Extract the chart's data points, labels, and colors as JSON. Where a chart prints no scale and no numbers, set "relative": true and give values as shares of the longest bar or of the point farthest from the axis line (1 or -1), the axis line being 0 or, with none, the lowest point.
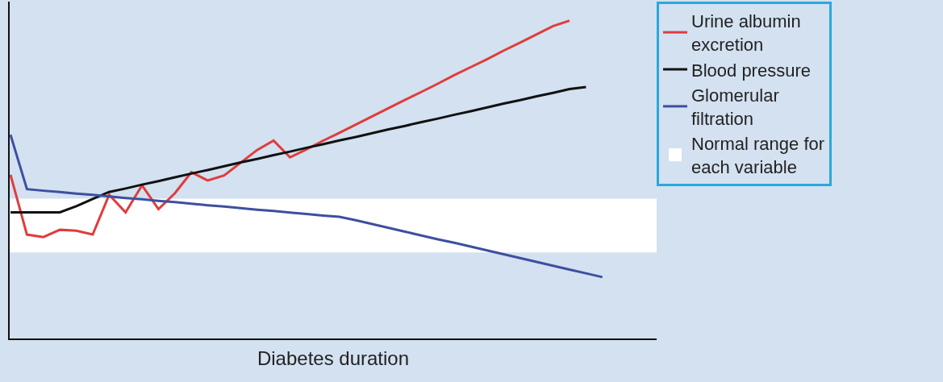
{
  "chart_data": {
    "type": "line",
    "relative": true,
    "xlabel": "Diabetes duration",
    "tick_labels": false,
    "grid": false,
    "legend": "right",
    "marker": "none",
    "line_style": "solid",
    "categories": [
      null,
      null,
      null,
      null,
      null,
      null,
      null,
      null,
      null,
      null,
      null,
      null,
      null,
      null,
      null,
      null,
      null,
      null,
      null,
      null,
      null,
      null,
      null,
      null,
      null,
      null,
      null,
      null,
      null,
      null,
      null,
      null,
      null,
      null,
      null,
      null,
      null,
      null,
      null,
      null
    ],
    "series": [
      {
        "name": "Urine albumin excretion",
        "color": "#e03c3c",
        "values": [
          0.515,
          0.327,
          0.319,
          0.342,
          0.339,
          0.327,
          0.452,
          0.397,
          0.482,
          0.407,
          0.457,
          0.523,
          0.497,
          0.513,
          0.553,
          0.593,
          0.623,
          0.57,
          0.595,
          0.622,
          0.647,
          0.673,
          0.699,
          0.725,
          0.751,
          0.776,
          0.802,
          0.829,
          0.854,
          0.879,
          0.906,
          0.931,
          0.957,
          0.983,
          1.0,
          null,
          null,
          null,
          null,
          null
        ]
      },
      {
        "name": "Blood pressure",
        "color": "#111111",
        "values": [
          0.397,
          0.397,
          0.397,
          0.397,
          0.416,
          0.439,
          0.461,
          0.472,
          0.484,
          0.495,
          0.507,
          0.519,
          0.53,
          0.542,
          0.554,
          0.565,
          0.577,
          0.588,
          0.6,
          0.611,
          0.623,
          0.634,
          0.646,
          0.658,
          0.669,
          0.681,
          0.692,
          0.704,
          0.715,
          0.727,
          0.739,
          0.75,
          0.762,
          0.773,
          0.785,
          0.791,
          null,
          null,
          null,
          null
        ]
      },
      {
        "name": "Glomerular filtration",
        "color": "#3d4fa0",
        "values": [
          0.641,
          0.47,
          0.465,
          0.461,
          0.456,
          0.452,
          0.447,
          0.442,
          0.438,
          0.433,
          0.429,
          0.424,
          0.419,
          0.415,
          0.41,
          0.405,
          0.401,
          0.396,
          0.392,
          0.387,
          0.383,
          0.372,
          0.36,
          0.348,
          0.336,
          0.324,
          0.312,
          0.301,
          0.289,
          0.277,
          0.265,
          0.253,
          0.241,
          0.229,
          0.217,
          0.205,
          0.193,
          null,
          null,
          null
        ]
      }
    ],
    "bands": [
      {
        "axis": "y",
        "from": 0.271,
        "to": 0.44,
        "label": "Normal range for each variable",
        "color": "#ffffff"
      }
    ]
  }
}
